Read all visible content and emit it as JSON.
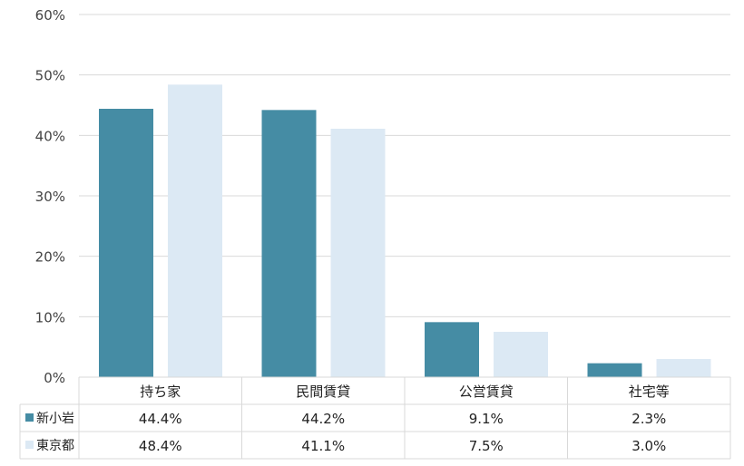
{
  "chart_data": {
    "type": "bar",
    "categories": [
      "持ち家",
      "民間賃貸",
      "公営賃貸",
      "社宅等"
    ],
    "series": [
      {
        "name": "新小岩",
        "values": [
          44.4,
          44.2,
          9.1,
          2.3
        ],
        "labels": [
          "44.4%",
          "44.2%",
          "9.1%",
          "2.3%"
        ],
        "color": "#458ca4"
      },
      {
        "name": "東京都",
        "values": [
          48.4,
          41.1,
          7.5,
          3.0
        ],
        "labels": [
          "48.4%",
          "41.1%",
          "7.5%",
          "3.0%"
        ],
        "color": "#dce9f4"
      }
    ],
    "ylim": [
      0,
      60
    ],
    "yticks": [
      "0%",
      "10%",
      "20%",
      "30%",
      "40%",
      "50%",
      "60%"
    ],
    "grid": true,
    "legend": "data-table"
  }
}
